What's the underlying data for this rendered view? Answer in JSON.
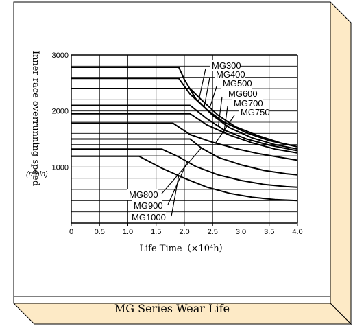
{
  "caption": "MG Series Wear Life",
  "chart_data": {
    "type": "line",
    "xlabel": "Life Time（×10⁴h）",
    "ylabel": "Inner race overrunning speed",
    "yunit": "(r/min)",
    "xlim": [
      0,
      4.0
    ],
    "ylim": [
      0,
      3000
    ],
    "xticks": [
      "0",
      "0.5",
      "1.0",
      "1.5",
      "2.0",
      "2.5",
      "3.0",
      "3.5",
      "4.0"
    ],
    "yticks": [
      "1000",
      "2000",
      "3000"
    ],
    "grid": true,
    "series": [
      {
        "name": "MG300",
        "x": [
          0,
          1.9,
          2.0,
          2.2,
          2.5,
          2.8,
          3.2,
          3.6,
          4.0
        ],
        "y": [
          2780,
          2780,
          2560,
          2220,
          1920,
          1700,
          1520,
          1400,
          1320
        ]
      },
      {
        "name": "MG400",
        "x": [
          0,
          1.9,
          2.1,
          2.4,
          2.7,
          3.1,
          3.5,
          4.0
        ],
        "y": [
          2580,
          2580,
          2300,
          2020,
          1800,
          1610,
          1470,
          1360
        ]
      },
      {
        "name": "MG500",
        "x": [
          0,
          2.1,
          2.3,
          2.6,
          2.9,
          3.3,
          3.7,
          4.0
        ],
        "y": [
          2400,
          2400,
          2200,
          1920,
          1720,
          1560,
          1430,
          1360
        ]
      },
      {
        "name": "MG600",
        "x": [
          0,
          2.1,
          2.4,
          2.7,
          3.1,
          3.5,
          4.0
        ],
        "y": [
          2100,
          2100,
          1860,
          1660,
          1500,
          1390,
          1290
        ]
      },
      {
        "name": "MG700",
        "x": [
          0,
          2.1,
          2.4,
          2.8,
          3.2,
          3.6,
          4.0
        ],
        "y": [
          1950,
          1950,
          1750,
          1570,
          1430,
          1320,
          1250
        ]
      },
      {
        "name": "MG750",
        "x": [
          0,
          1.8,
          2.1,
          2.5,
          2.9,
          3.3,
          3.7,
          4.0
        ],
        "y": [
          1780,
          1780,
          1580,
          1440,
          1330,
          1240,
          1170,
          1120
        ]
      },
      {
        "name": "MG800",
        "x": [
          0,
          2.1,
          2.3,
          2.6,
          3.0,
          3.4,
          3.8,
          4.0
        ],
        "y": [
          1500,
          1500,
          1340,
          1170,
          1040,
          940,
          880,
          860
        ]
      },
      {
        "name": "MG900",
        "x": [
          0,
          1.6,
          1.9,
          2.2,
          2.6,
          3.0,
          3.4,
          3.8,
          4.0
        ],
        "y": [
          1320,
          1320,
          1180,
          1010,
          860,
          760,
          690,
          650,
          640
        ]
      },
      {
        "name": "MG1000",
        "x": [
          0,
          1.2,
          1.6,
          2.0,
          2.4,
          2.8,
          3.2,
          3.6,
          4.0
        ],
        "y": [
          1190,
          1190,
          980,
          800,
          640,
          530,
          460,
          420,
          400
        ]
      }
    ]
  }
}
